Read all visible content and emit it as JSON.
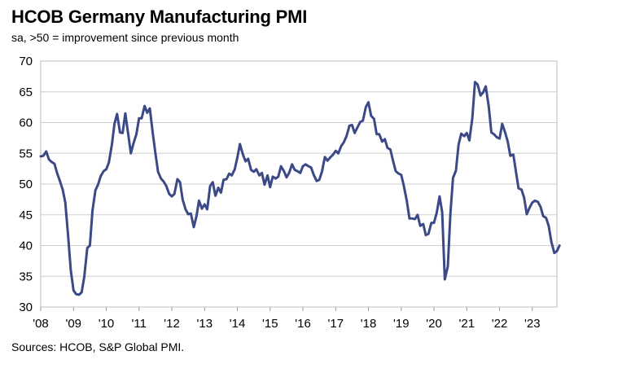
{
  "chart_data": {
    "type": "line",
    "title": "HCOB Germany Manufacturing PMI",
    "subtitle": "sa, >50 = improvement since previous month",
    "source": "Sources: HCOB, S&P Global PMI.",
    "xlabel": "",
    "ylabel": "",
    "x_range": [
      2008.0,
      2023.75
    ],
    "ylim": [
      30,
      70
    ],
    "y_ticks": [
      30,
      35,
      40,
      45,
      50,
      55,
      60,
      65,
      70
    ],
    "x_ticks": [
      {
        "value": 2008,
        "label": "'08"
      },
      {
        "value": 2009,
        "label": "'09"
      },
      {
        "value": 2010,
        "label": "'10"
      },
      {
        "value": 2011,
        "label": "'11"
      },
      {
        "value": 2012,
        "label": "'12"
      },
      {
        "value": 2013,
        "label": "'13"
      },
      {
        "value": 2014,
        "label": "'14"
      },
      {
        "value": 2015,
        "label": "'15"
      },
      {
        "value": 2016,
        "label": "'16"
      },
      {
        "value": 2017,
        "label": "'17"
      },
      {
        "value": 2018,
        "label": "'18"
      },
      {
        "value": 2019,
        "label": "'19"
      },
      {
        "value": 2020,
        "label": "'20"
      },
      {
        "value": 2021,
        "label": "'21"
      },
      {
        "value": 2022,
        "label": "'22"
      },
      {
        "value": 2023,
        "label": "'23"
      }
    ],
    "grid": "horizontal",
    "line_color": "#3b4a86",
    "series": [
      {
        "points": [
          [
            2008.0,
            54.5
          ],
          [
            2008.08,
            54.6
          ],
          [
            2008.17,
            55.3
          ],
          [
            2008.25,
            54.0
          ],
          [
            2008.33,
            53.6
          ],
          [
            2008.42,
            53.3
          ],
          [
            2008.5,
            51.8
          ],
          [
            2008.58,
            50.6
          ],
          [
            2008.67,
            49.1
          ],
          [
            2008.75,
            47.0
          ],
          [
            2008.83,
            42.0
          ],
          [
            2008.92,
            35.9
          ],
          [
            2009.0,
            32.7
          ],
          [
            2009.08,
            32.1
          ],
          [
            2009.17,
            32.0
          ],
          [
            2009.25,
            32.4
          ],
          [
            2009.33,
            34.9
          ],
          [
            2009.42,
            39.6
          ],
          [
            2009.5,
            40.0
          ],
          [
            2009.58,
            45.7
          ],
          [
            2009.67,
            49.0
          ],
          [
            2009.75,
            49.9
          ],
          [
            2009.83,
            51.3
          ],
          [
            2009.92,
            52.1
          ],
          [
            2010.0,
            52.4
          ],
          [
            2010.08,
            53.5
          ],
          [
            2010.17,
            56.4
          ],
          [
            2010.25,
            59.8
          ],
          [
            2010.33,
            61.4
          ],
          [
            2010.42,
            58.4
          ],
          [
            2010.5,
            58.3
          ],
          [
            2010.58,
            61.5
          ],
          [
            2010.67,
            58.1
          ],
          [
            2010.75,
            55.0
          ],
          [
            2010.83,
            56.6
          ],
          [
            2010.92,
            58.1
          ],
          [
            2011.0,
            60.7
          ],
          [
            2011.08,
            60.7
          ],
          [
            2011.17,
            62.7
          ],
          [
            2011.25,
            61.6
          ],
          [
            2011.33,
            62.3
          ],
          [
            2011.42,
            58.2
          ],
          [
            2011.5,
            55.0
          ],
          [
            2011.58,
            52.0
          ],
          [
            2011.67,
            50.9
          ],
          [
            2011.75,
            50.4
          ],
          [
            2011.83,
            49.7
          ],
          [
            2011.92,
            48.4
          ],
          [
            2012.0,
            48.0
          ],
          [
            2012.08,
            48.4
          ],
          [
            2012.17,
            50.8
          ],
          [
            2012.25,
            50.3
          ],
          [
            2012.33,
            47.5
          ],
          [
            2012.42,
            45.9
          ],
          [
            2012.5,
            45.1
          ],
          [
            2012.58,
            45.2
          ],
          [
            2012.67,
            43.0
          ],
          [
            2012.75,
            44.7
          ],
          [
            2012.83,
            47.3
          ],
          [
            2012.92,
            46.0
          ],
          [
            2013.0,
            46.7
          ],
          [
            2013.08,
            45.9
          ],
          [
            2013.17,
            49.7
          ],
          [
            2013.25,
            50.3
          ],
          [
            2013.33,
            48.1
          ],
          [
            2013.42,
            49.4
          ],
          [
            2013.5,
            48.6
          ],
          [
            2013.58,
            50.7
          ],
          [
            2013.67,
            50.8
          ],
          [
            2013.75,
            51.7
          ],
          [
            2013.83,
            51.4
          ],
          [
            2013.92,
            52.4
          ],
          [
            2014.0,
            54.3
          ],
          [
            2014.08,
            56.5
          ],
          [
            2014.17,
            54.8
          ],
          [
            2014.25,
            53.7
          ],
          [
            2014.33,
            54.1
          ],
          [
            2014.42,
            52.3
          ],
          [
            2014.5,
            52.0
          ],
          [
            2014.58,
            52.4
          ],
          [
            2014.67,
            51.4
          ],
          [
            2014.75,
            51.8
          ],
          [
            2014.83,
            49.9
          ],
          [
            2014.92,
            51.4
          ],
          [
            2015.0,
            49.5
          ],
          [
            2015.08,
            51.2
          ],
          [
            2015.17,
            50.9
          ],
          [
            2015.25,
            51.2
          ],
          [
            2015.33,
            52.9
          ],
          [
            2015.42,
            52.1
          ],
          [
            2015.5,
            51.1
          ],
          [
            2015.58,
            51.8
          ],
          [
            2015.67,
            53.2
          ],
          [
            2015.75,
            52.3
          ],
          [
            2015.83,
            52.1
          ],
          [
            2015.92,
            51.8
          ],
          [
            2016.0,
            52.9
          ],
          [
            2016.08,
            53.2
          ],
          [
            2016.17,
            52.9
          ],
          [
            2016.25,
            52.7
          ],
          [
            2016.33,
            51.5
          ],
          [
            2016.42,
            50.5
          ],
          [
            2016.5,
            50.7
          ],
          [
            2016.58,
            52.0
          ],
          [
            2016.67,
            54.4
          ],
          [
            2016.75,
            53.8
          ],
          [
            2016.83,
            54.3
          ],
          [
            2016.92,
            54.8
          ],
          [
            2017.0,
            55.4
          ],
          [
            2017.08,
            55.0
          ],
          [
            2017.17,
            56.2
          ],
          [
            2017.25,
            56.8
          ],
          [
            2017.33,
            57.8
          ],
          [
            2017.42,
            59.5
          ],
          [
            2017.5,
            59.6
          ],
          [
            2017.58,
            58.3
          ],
          [
            2017.67,
            59.3
          ],
          [
            2017.75,
            60.1
          ],
          [
            2017.83,
            60.3
          ],
          [
            2017.92,
            62.5
          ],
          [
            2018.0,
            63.3
          ],
          [
            2018.08,
            61.1
          ],
          [
            2018.17,
            60.6
          ],
          [
            2018.25,
            58.1
          ],
          [
            2018.33,
            58.1
          ],
          [
            2018.42,
            56.9
          ],
          [
            2018.5,
            57.3
          ],
          [
            2018.58,
            55.9
          ],
          [
            2018.67,
            55.6
          ],
          [
            2018.75,
            53.8
          ],
          [
            2018.83,
            52.1
          ],
          [
            2018.92,
            51.7
          ],
          [
            2019.0,
            51.5
          ],
          [
            2019.08,
            49.7
          ],
          [
            2019.17,
            47.3
          ],
          [
            2019.25,
            44.4
          ],
          [
            2019.33,
            44.4
          ],
          [
            2019.42,
            44.3
          ],
          [
            2019.5,
            45.0
          ],
          [
            2019.58,
            43.2
          ],
          [
            2019.67,
            43.5
          ],
          [
            2019.75,
            41.7
          ],
          [
            2019.83,
            41.9
          ],
          [
            2019.92,
            43.7
          ],
          [
            2020.0,
            43.7
          ],
          [
            2020.08,
            45.3
          ],
          [
            2020.17,
            48.0
          ],
          [
            2020.25,
            45.4
          ],
          [
            2020.33,
            34.5
          ],
          [
            2020.42,
            36.6
          ],
          [
            2020.5,
            45.2
          ],
          [
            2020.58,
            51.0
          ],
          [
            2020.67,
            52.2
          ],
          [
            2020.75,
            56.4
          ],
          [
            2020.83,
            58.2
          ],
          [
            2020.92,
            57.8
          ],
          [
            2021.0,
            58.3
          ],
          [
            2021.08,
            57.1
          ],
          [
            2021.17,
            60.7
          ],
          [
            2021.25,
            66.6
          ],
          [
            2021.33,
            66.2
          ],
          [
            2021.42,
            64.4
          ],
          [
            2021.5,
            64.9
          ],
          [
            2021.58,
            65.9
          ],
          [
            2021.67,
            62.6
          ],
          [
            2021.75,
            58.4
          ],
          [
            2021.83,
            58.1
          ],
          [
            2021.92,
            57.6
          ],
          [
            2022.0,
            57.4
          ],
          [
            2022.08,
            59.8
          ],
          [
            2022.17,
            58.4
          ],
          [
            2022.25,
            56.9
          ],
          [
            2022.33,
            54.6
          ],
          [
            2022.42,
            54.8
          ],
          [
            2022.5,
            52.0
          ],
          [
            2022.58,
            49.3
          ],
          [
            2022.67,
            49.1
          ],
          [
            2022.75,
            47.8
          ],
          [
            2022.83,
            45.1
          ],
          [
            2022.92,
            46.2
          ],
          [
            2023.0,
            47.0
          ],
          [
            2023.08,
            47.3
          ],
          [
            2023.17,
            47.1
          ],
          [
            2023.25,
            46.3
          ],
          [
            2023.33,
            44.8
          ],
          [
            2023.42,
            44.5
          ],
          [
            2023.5,
            43.2
          ],
          [
            2023.58,
            40.6
          ],
          [
            2023.67,
            38.8
          ],
          [
            2023.75,
            39.1
          ],
          [
            2023.83,
            40.0
          ]
        ]
      }
    ]
  }
}
